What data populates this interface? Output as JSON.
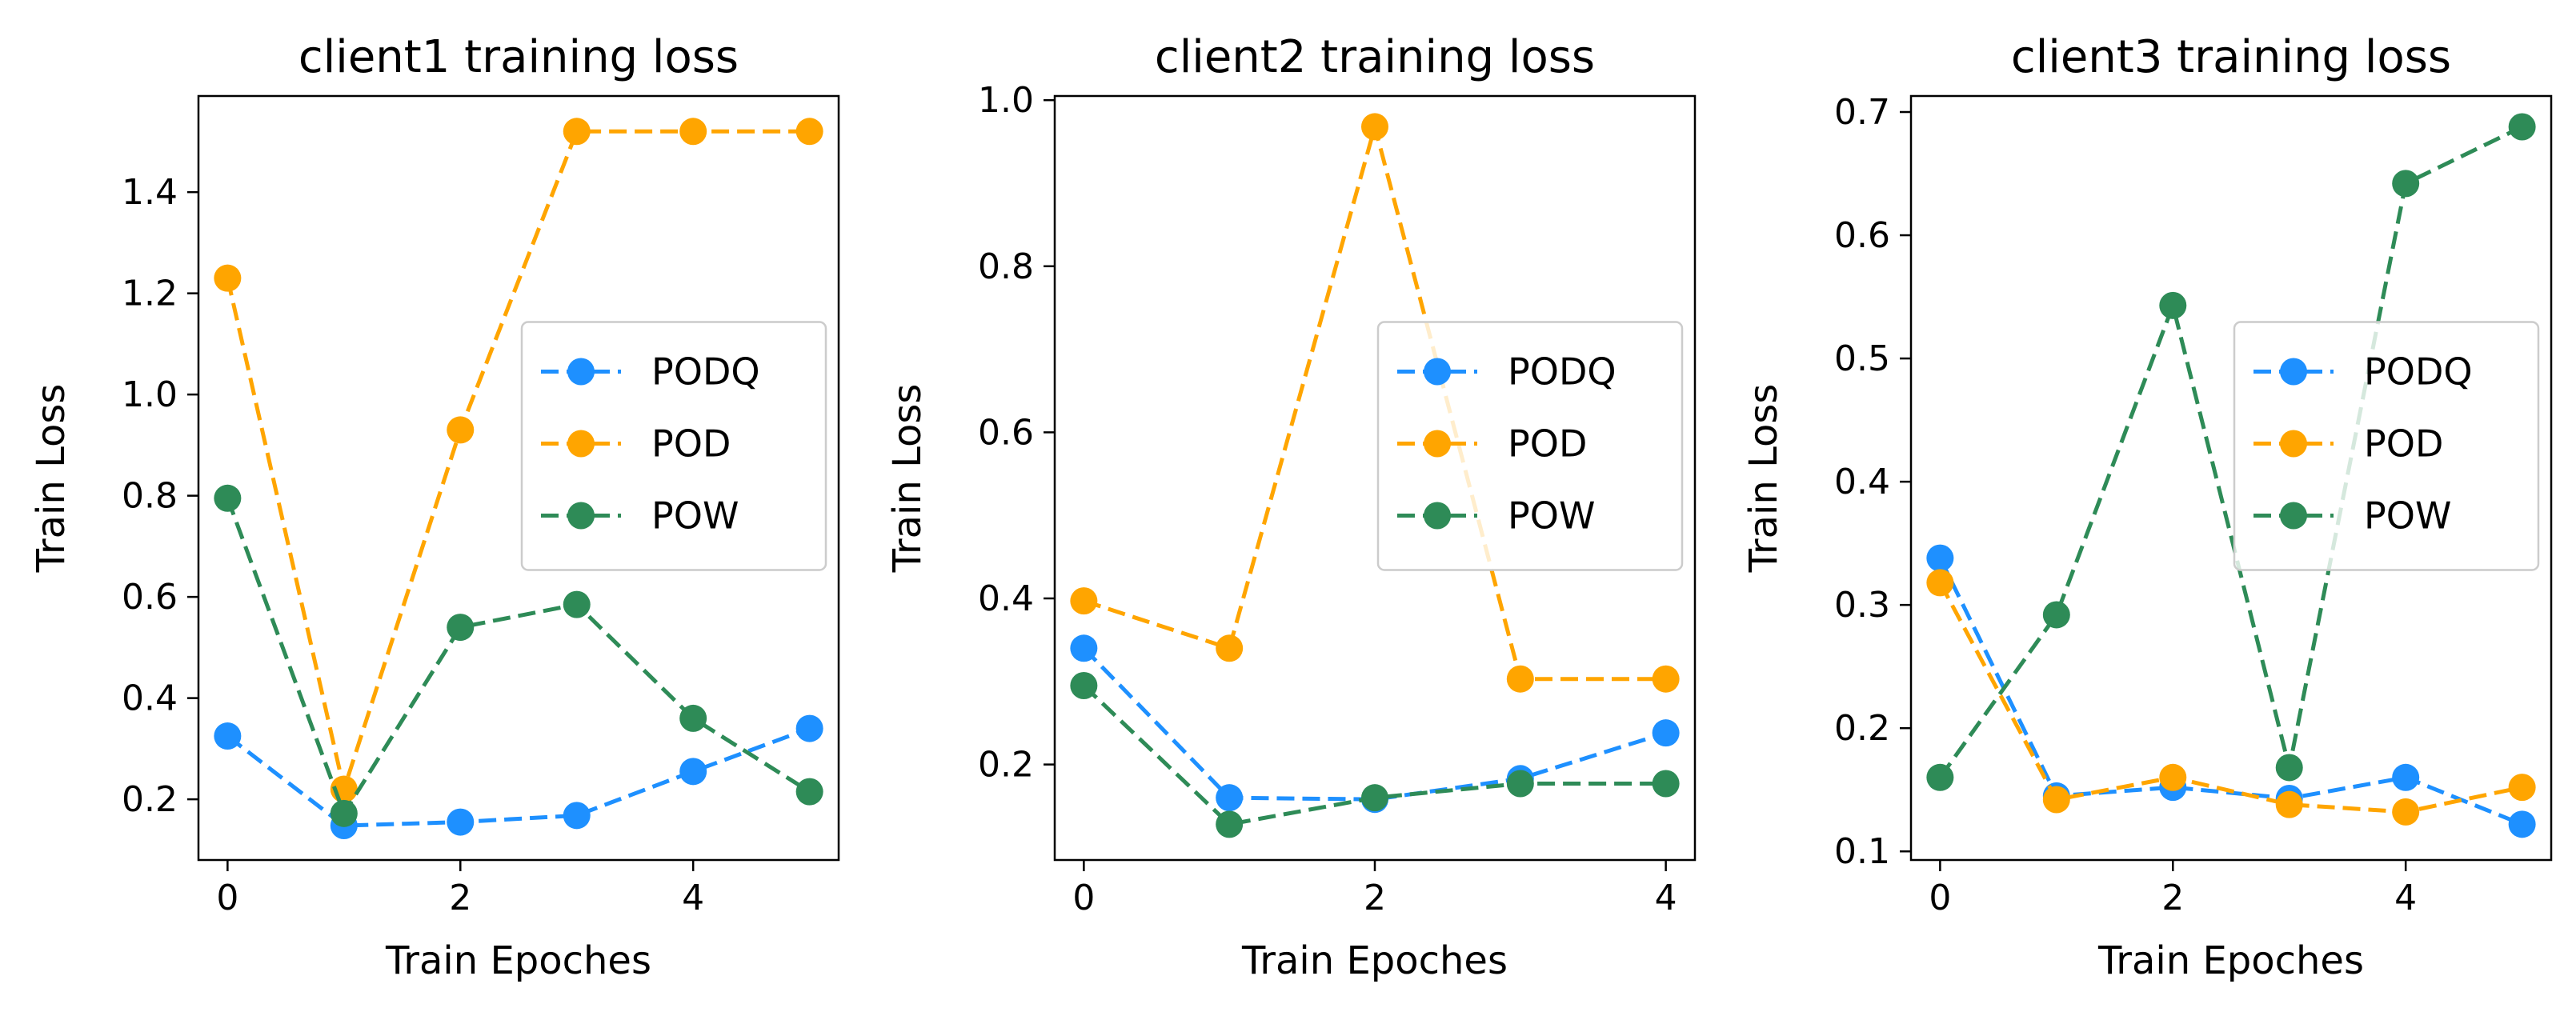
{
  "chart_data": [
    {
      "type": "line",
      "title": "client1 training loss",
      "xlabel": "Train Epoches",
      "ylabel": "Train Loss",
      "x": [
        0,
        1,
        2,
        3,
        4,
        5
      ],
      "xticks": [
        "0",
        "2",
        "4"
      ],
      "xlim": [
        -0.25,
        5.25
      ],
      "yticks": [
        "0.2",
        "0.4",
        "0.6",
        "0.8",
        "1.0",
        "1.2",
        "1.4"
      ],
      "ylim": [
        0.08,
        1.59
      ],
      "legend_position": "center-right",
      "series": [
        {
          "name": "PODQ",
          "color": "#1e90ff",
          "values": [
            0.325,
            0.148,
            0.155,
            0.168,
            0.255,
            0.34
          ]
        },
        {
          "name": "POD",
          "color": "#ffa500",
          "values": [
            1.23,
            0.22,
            0.93,
            1.52,
            1.52,
            1.52
          ]
        },
        {
          "name": "POW",
          "color": "#2e8b57",
          "values": [
            0.795,
            0.172,
            0.54,
            0.585,
            0.36,
            0.215
          ]
        }
      ]
    },
    {
      "type": "line",
      "title": "client2 training loss",
      "xlabel": "Train Epoches",
      "ylabel": "Train Loss",
      "x": [
        0,
        1,
        2,
        3,
        4
      ],
      "xticks": [
        "0",
        "2",
        "4"
      ],
      "xlim": [
        -0.2,
        4.2
      ],
      "yticks": [
        "0.2",
        "0.4",
        "0.6",
        "0.8",
        "1.0"
      ],
      "ylim": [
        0.085,
        1.005
      ],
      "legend_position": "center-right",
      "series": [
        {
          "name": "PODQ",
          "color": "#1e90ff",
          "values": [
            0.34,
            0.16,
            0.158,
            0.183,
            0.238
          ]
        },
        {
          "name": "POD",
          "color": "#ffa500",
          "values": [
            0.397,
            0.34,
            0.968,
            0.303,
            0.303
          ]
        },
        {
          "name": "POW",
          "color": "#2e8b57",
          "values": [
            0.295,
            0.128,
            0.16,
            0.177,
            0.177
          ]
        }
      ]
    },
    {
      "type": "line",
      "title": "client3 training loss",
      "xlabel": "Train Epoches",
      "ylabel": "Train Loss",
      "x": [
        0,
        1,
        2,
        3,
        4,
        5
      ],
      "xticks": [
        "0",
        "2",
        "4"
      ],
      "xlim": [
        -0.25,
        5.25
      ],
      "yticks": [
        "0.1",
        "0.2",
        "0.3",
        "0.4",
        "0.5",
        "0.6",
        "0.7"
      ],
      "ylim": [
        0.093,
        0.713
      ],
      "legend_position": "center-right",
      "series": [
        {
          "name": "PODQ",
          "color": "#1e90ff",
          "values": [
            0.338,
            0.145,
            0.152,
            0.143,
            0.16,
            0.122
          ]
        },
        {
          "name": "POD",
          "color": "#ffa500",
          "values": [
            0.318,
            0.142,
            0.16,
            0.138,
            0.132,
            0.152
          ]
        },
        {
          "name": "POW",
          "color": "#2e8b57",
          "values": [
            0.16,
            0.292,
            0.543,
            0.168,
            0.642,
            0.688
          ]
        }
      ]
    }
  ]
}
